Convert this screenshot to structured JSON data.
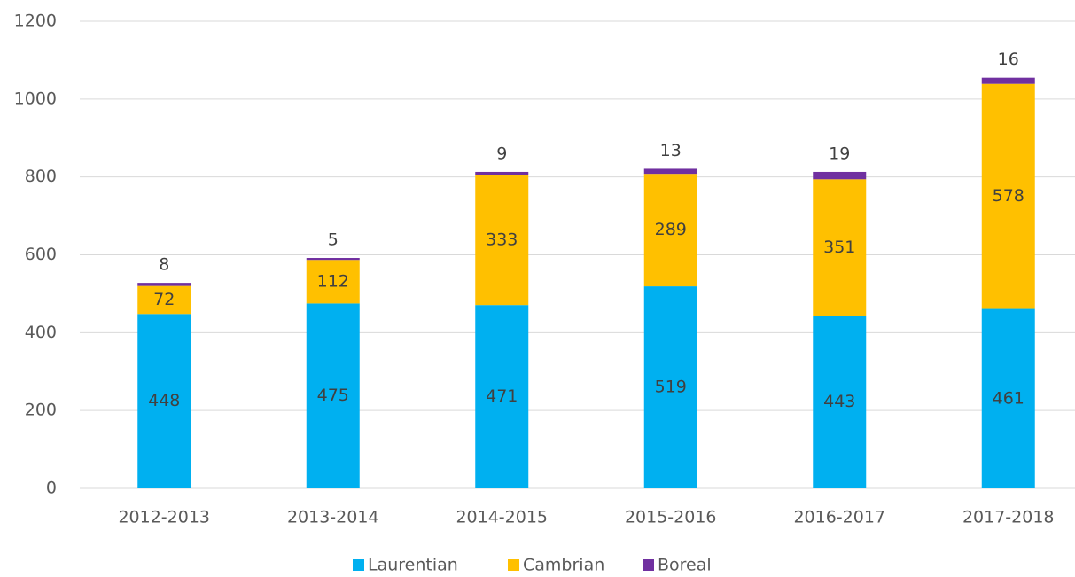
{
  "chart_data": {
    "type": "stacked_bar",
    "categories": [
      "2012-2013",
      "2013-2014",
      "2014-2015",
      "2015-2016",
      "2016-2017",
      "2017-2018"
    ],
    "series": [
      {
        "name": "Laurentian",
        "color": "#00b0f0",
        "values": [
          448,
          475,
          471,
          519,
          443,
          461
        ]
      },
      {
        "name": "Cambrian",
        "color": "#ffc000",
        "values": [
          72,
          112,
          333,
          289,
          351,
          578
        ]
      },
      {
        "name": "Boreal",
        "color": "#7030a0",
        "values": [
          8,
          5,
          9,
          13,
          19,
          16
        ]
      }
    ],
    "ylim": [
      0,
      1200
    ],
    "yticks": [
      0,
      200,
      400,
      600,
      800,
      1000,
      1200
    ],
    "grid": true,
    "legend": "bottom"
  }
}
